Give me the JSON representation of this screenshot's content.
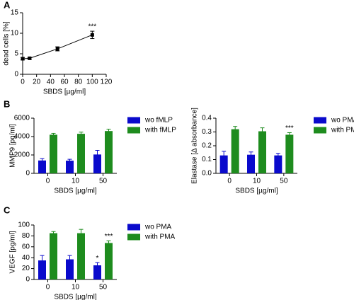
{
  "chart_data": [
    {
      "type": "line",
      "label": "A",
      "xlabel": "SBDS [µg/ml]",
      "ylabel": "dead cells [%]",
      "x": [
        0,
        10,
        50,
        100
      ],
      "series": [
        {
          "color": "#000000",
          "values": [
            3.8,
            3.9,
            6.2,
            9.6
          ],
          "errors": [
            0.3,
            0.2,
            0.5,
            0.9
          ],
          "annotations": [
            null,
            null,
            null,
            "***"
          ]
        }
      ],
      "xlim": [
        0,
        120
      ],
      "xticks": [
        0,
        20,
        40,
        60,
        80,
        100,
        120
      ],
      "ylim": [
        0,
        15
      ],
      "yticks": [
        0,
        5,
        10,
        15
      ]
    },
    {
      "type": "bar",
      "label": "B",
      "xlabel": "SBDS [µg/ml]",
      "ylabel": "MMP9 [pg/ml]",
      "categories": [
        "0",
        "10",
        "50"
      ],
      "series": [
        {
          "name": "wo fMLP",
          "color": "#0a0acc",
          "values": [
            1400,
            1380,
            2050
          ],
          "errors": [
            200,
            150,
            450
          ]
        },
        {
          "name": "with fMLP",
          "color": "#1e8c1e",
          "values": [
            4200,
            4300,
            4600
          ],
          "errors": [
            150,
            180,
            200
          ]
        }
      ],
      "ylim": [
        0,
        6000
      ],
      "yticks": [
        0,
        2000,
        4000,
        6000
      ],
      "legend": "outside right"
    },
    {
      "type": "bar",
      "xlabel": "SBDS [µg/ml]",
      "ylabel": "Elastase [Δ absorbance]",
      "categories": [
        "0",
        "10",
        "50"
      ],
      "series": [
        {
          "name": "wo PMA",
          "color": "#0a0acc",
          "values": [
            0.13,
            0.135,
            0.13
          ],
          "errors": [
            0.03,
            0.02,
            0.015
          ]
        },
        {
          "name": "with PMA",
          "color": "#1e8c1e",
          "values": [
            0.32,
            0.305,
            0.28
          ],
          "errors": [
            0.02,
            0.025,
            0.015
          ],
          "annotations": [
            null,
            null,
            "***"
          ]
        }
      ],
      "ylim": [
        0,
        0.4
      ],
      "yticks": [
        {
          "value": 0,
          "label": "0.0"
        },
        0.1,
        0.2,
        0.3,
        0.4
      ],
      "legend": "outside right"
    },
    {
      "type": "bar",
      "label": "C",
      "xlabel": "SBDS [µg/ml]",
      "ylabel": "VEGF [pg/ml]",
      "categories": [
        "0",
        "10",
        "50"
      ],
      "series": [
        {
          "name": "wo PMA",
          "color": "#0a0acc",
          "values": [
            35,
            37,
            26
          ],
          "errors": [
            9,
            7,
            5
          ],
          "annotations": [
            null,
            null,
            "*"
          ]
        },
        {
          "name": "with PMA",
          "color": "#1e8c1e",
          "values": [
            85,
            85,
            67
          ],
          "errors": [
            3,
            7,
            4
          ],
          "annotations": [
            null,
            null,
            "***"
          ]
        }
      ],
      "ylim": [
        0,
        100
      ],
      "yticks": [
        0,
        20,
        40,
        60,
        80,
        100
      ],
      "legend": "outside right"
    }
  ]
}
